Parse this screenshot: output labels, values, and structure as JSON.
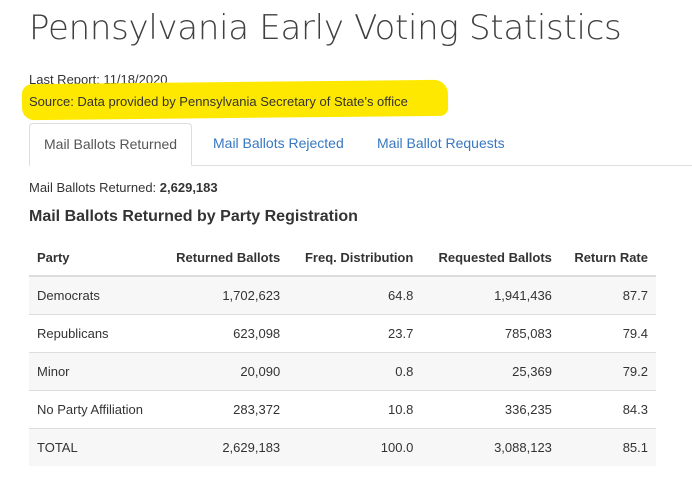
{
  "page": {
    "title": "Pennsylvania Early Voting Statistics",
    "last_report": "Last Report: 11/18/2020",
    "source": "Source: Data provided by Pennsylvania Secretary of State’s office",
    "highlight_color": "#ffe800"
  },
  "tabs": [
    {
      "label": "Mail Ballots Returned",
      "active": true
    },
    {
      "label": "Mail Ballots Rejected",
      "active": false
    },
    {
      "label": "Mail Ballot Requests",
      "active": false
    }
  ],
  "summary": {
    "label": "Mail Ballots Returned: ",
    "value": "2,629,183"
  },
  "section_title": "Mail Ballots Returned by Party Registration",
  "table": {
    "headers": [
      "Party",
      "Returned Ballots",
      "Freq. Distribution",
      "Requested Ballots",
      "Return Rate"
    ],
    "rows": [
      [
        "Democrats",
        "1,702,623",
        "64.8",
        "1,941,436",
        "87.7"
      ],
      [
        "Republicans",
        "623,098",
        "23.7",
        "785,083",
        "79.4"
      ],
      [
        "Minor",
        "20,090",
        "0.8",
        "25,369",
        "79.2"
      ],
      [
        "No Party Affiliation",
        "283,372",
        "10.8",
        "336,235",
        "84.3"
      ],
      [
        "TOTAL",
        "2,629,183",
        "100.0",
        "3,088,123",
        "85.1"
      ]
    ]
  },
  "colors": {
    "link": "#3778c2",
    "border": "#dddddd",
    "row_stripe": "#f7f7f7"
  }
}
